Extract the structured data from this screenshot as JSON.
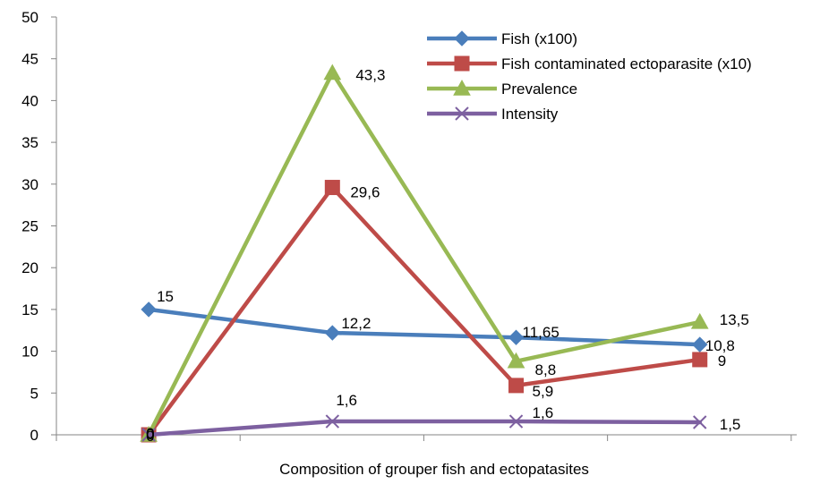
{
  "chart_data": {
    "type": "line",
    "title": "",
    "xlabel": "Composition of grouper fish and ectopatasites",
    "ylabel": "",
    "ylim": [
      0,
      50
    ],
    "yticks": [
      0,
      5,
      10,
      15,
      20,
      25,
      30,
      35,
      40,
      45,
      50
    ],
    "ytick_labels": [
      "0",
      "5",
      "10",
      "15",
      "20",
      "25",
      "30",
      "35",
      "40",
      "45",
      "50"
    ],
    "categories": [
      "",
      "",
      "",
      ""
    ],
    "grid": false,
    "legend_position": "top-right",
    "series": [
      {
        "name": "Fish (x100)",
        "color": "#4a7ebb",
        "marker": "diamond",
        "values": [
          15,
          12.2,
          11.65,
          10.8
        ],
        "labels": [
          "15",
          "12,2",
          "11,65",
          "10,8"
        ]
      },
      {
        "name": "Fish contaminated ectoparasite (x10)",
        "color": "#be4b48",
        "marker": "square",
        "values": [
          0,
          29.6,
          5.9,
          9
        ],
        "labels": [
          "0",
          "29,6",
          "5,9",
          "9"
        ]
      },
      {
        "name": "Prevalence",
        "color": "#98b954",
        "marker": "triangle",
        "values": [
          0,
          43.3,
          8.8,
          13.5
        ],
        "labels": [
          "0",
          "43,3",
          "8,8",
          "13,5"
        ]
      },
      {
        "name": "Intensity",
        "color": "#7d60a0",
        "marker": "x",
        "values": [
          0,
          1.6,
          1.6,
          1.5
        ],
        "labels": [
          "0",
          "1,6",
          "1,6",
          "1,5"
        ]
      }
    ]
  }
}
